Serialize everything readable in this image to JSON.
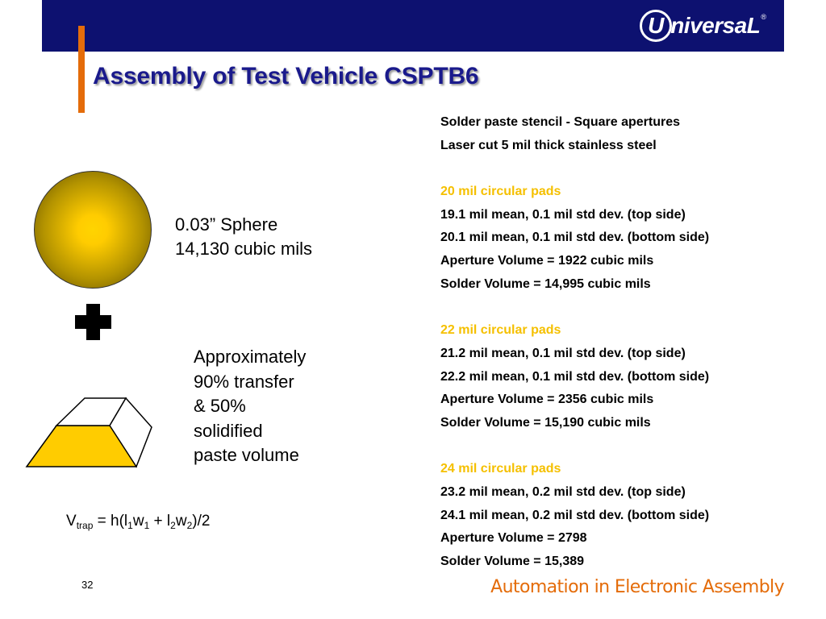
{
  "header": {
    "logo_text": "niversaL",
    "logo_mark": "U",
    "logo_reg": "®"
  },
  "title": "Assembly of Test Vehicle CSPTB6",
  "left": {
    "sphere": {
      "line1": "0.03” Sphere",
      "line2": "14,130 cubic mils"
    },
    "transfer": [
      "Approximately",
      "90% transfer",
      "& 50%",
      "solidified",
      "paste volume"
    ],
    "formula": {
      "V": "V",
      "trap": "trap",
      "eq": " = h(l",
      "s1": "1",
      "w": "w",
      "s2": "1",
      "plus": " + l",
      "s3": "2",
      "w2": "w",
      "s4": "2",
      "end": ")/2"
    }
  },
  "specs": {
    "intro": [
      "Solder paste stencil - Square apertures",
      "Laser cut 5 mil thick stainless steel"
    ],
    "groups": [
      {
        "heading": "20 mil circular pads",
        "lines": [
          "19.1 mil mean, 0.1 mil std dev. (top side)",
          "20.1 mil mean, 0.1 mil std dev. (bottom side)",
          "Aperture Volume = 1922 cubic mils",
          "Solder Volume = 14,995 cubic mils"
        ]
      },
      {
        "heading": "22 mil circular pads",
        "lines": [
          "21.2 mil mean, 0.1 mil std dev. (top side)",
          "22.2 mil mean, 0.1 mil std dev. (bottom side)",
          "Aperture Volume = 2356 cubic mils",
          "Solder Volume = 15,190 cubic mils"
        ]
      },
      {
        "heading": "24 mil circular pads",
        "lines": [
          "23.2 mil mean, 0.2 mil std dev. (top side)",
          "24.1 mil mean, 0.2 mil std dev. (bottom side)",
          "Aperture Volume = 2798",
          "Solder Volume = 15,389"
        ]
      }
    ]
  },
  "footer": {
    "page_number": "32",
    "tagline": "Automation in Electronic Assembly"
  },
  "colors": {
    "header_bar": "#0d1170",
    "accent_orange": "#e46c0a",
    "title_blue": "#1a1a8c",
    "heading_yellow": "#f5c000",
    "solder_yellow": "#ffcc00"
  },
  "icons": [
    "universal-logo-icon",
    "solder-sphere-icon",
    "plus-icon",
    "trapezoid-solder-icon"
  ]
}
